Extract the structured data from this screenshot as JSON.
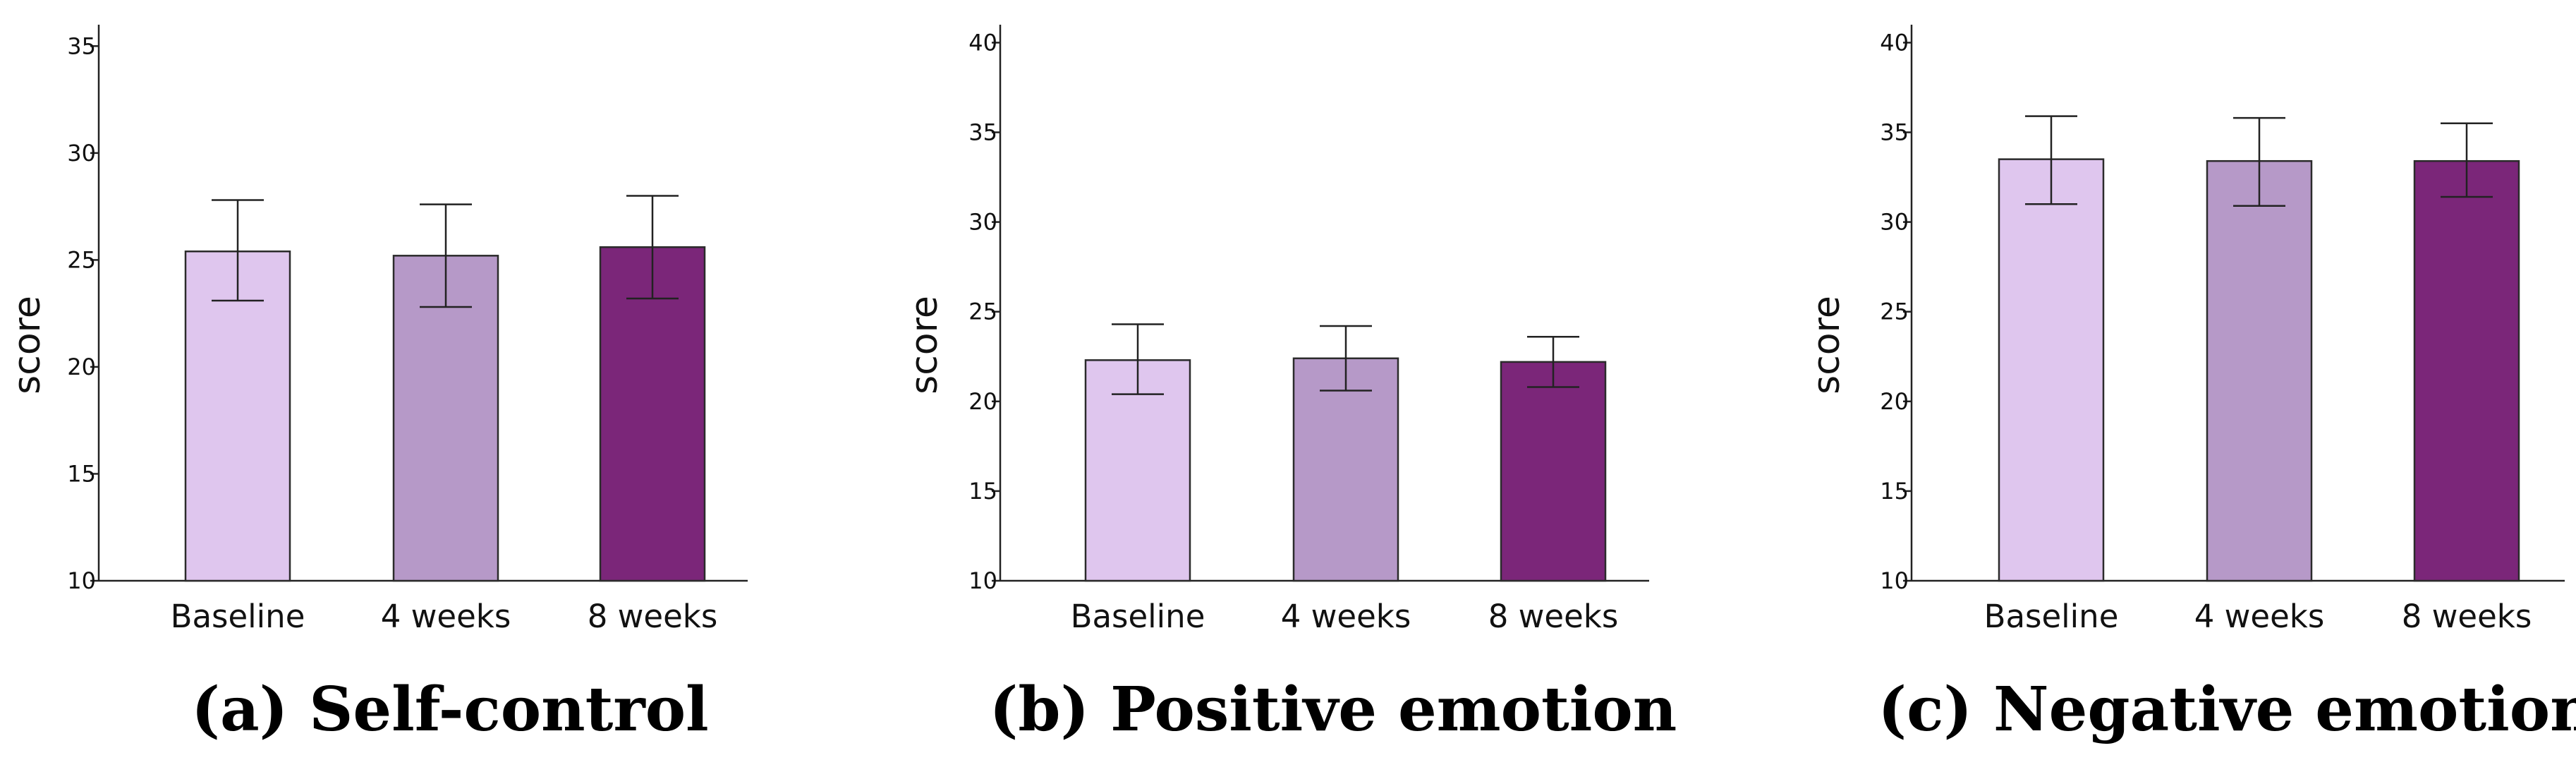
{
  "colors": {
    "baseline": "#dfc6ee",
    "four_weeks": "#b699c8",
    "eight_weeks": "#7b2679",
    "axis": "#222222"
  },
  "chart_data": [
    {
      "type": "bar",
      "title": "(a) Self-control",
      "xlabel": "",
      "ylabel": "score",
      "categories": [
        "Baseline",
        "4 weeks",
        "8 weeks"
      ],
      "values": [
        25.4,
        25.2,
        25.6
      ],
      "error_low": [
        23.1,
        22.8,
        23.2
      ],
      "error_high": [
        27.8,
        27.6,
        28.0
      ],
      "ylim": [
        10,
        36
      ],
      "yticks": [
        10,
        15,
        20,
        25,
        30,
        35
      ],
      "ytick_labels": [
        "10",
        "15",
        "20",
        "25",
        "30",
        "35"
      ],
      "grid": false
    },
    {
      "type": "bar",
      "title": "(b) Positive emotion",
      "xlabel": "",
      "ylabel": "score",
      "categories": [
        "Baseline",
        "4 weeks",
        "8 weeks"
      ],
      "values": [
        22.3,
        22.4,
        22.2
      ],
      "error_low": [
        20.4,
        20.6,
        20.8
      ],
      "error_high": [
        24.3,
        24.2,
        23.6
      ],
      "ylim": [
        10,
        41
      ],
      "yticks": [
        10,
        15,
        20,
        25,
        30,
        35,
        40
      ],
      "ytick_labels": [
        "10",
        "15",
        "20",
        "25",
        "30",
        "35",
        "40"
      ],
      "grid": false
    },
    {
      "type": "bar",
      "title": "(c) Negative emotion",
      "xlabel": "",
      "ylabel": "score",
      "categories": [
        "Baseline",
        "4 weeks",
        "8 weeks"
      ],
      "values": [
        33.5,
        33.4,
        33.4
      ],
      "error_low": [
        31.0,
        30.9,
        31.4
      ],
      "error_high": [
        35.9,
        35.8,
        35.5
      ],
      "ylim": [
        10,
        41
      ],
      "yticks": [
        10,
        15,
        20,
        25,
        30,
        35,
        40
      ],
      "ytick_labels": [
        "10",
        "15",
        "20",
        "25",
        "30",
        "35",
        "40"
      ],
      "grid": false
    }
  ]
}
